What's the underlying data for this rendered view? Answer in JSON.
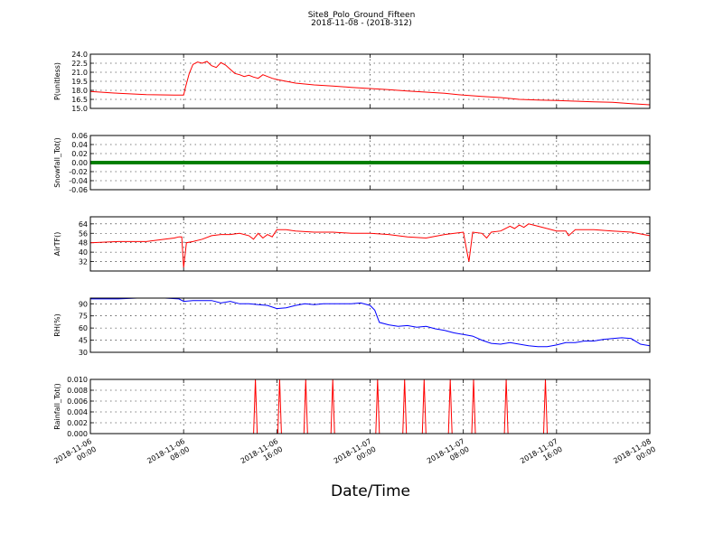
{
  "figure": {
    "title": "Site8_Polo_Ground_Fifteen",
    "subtitle": "2018-11-08 - (2018-312)",
    "xlabel": "Date/Time"
  },
  "chart_data": [
    {
      "type": "line",
      "ylabel": "P(unitless)",
      "yticks": [
        "24.0",
        "22.5",
        "21.0",
        "19.5",
        "18.0",
        "16.5",
        "15.0"
      ],
      "ylim": [
        15.0,
        24.0
      ],
      "color": "#ff0000",
      "grid": true,
      "x": [
        0,
        3,
        6,
        9,
        10,
        10.2,
        10.6,
        11,
        11.5,
        12,
        12.5,
        13,
        13.5,
        14,
        14.5,
        15,
        15.5,
        16,
        16.5,
        17,
        17.5,
        18,
        18.5,
        19,
        19.5,
        20,
        21,
        22,
        24,
        26,
        28,
        30,
        32,
        34,
        36,
        38,
        40,
        42,
        44,
        46,
        48,
        50,
        52,
        54,
        56,
        58,
        60
      ],
      "y": [
        17.8,
        17.5,
        17.3,
        17.2,
        17.2,
        18.5,
        20.8,
        22.3,
        22.7,
        22.5,
        22.8,
        22.1,
        21.8,
        22.6,
        22.2,
        21.5,
        20.8,
        20.6,
        20.3,
        20.5,
        20.2,
        20.0,
        20.6,
        20.3,
        20.0,
        19.8,
        19.5,
        19.2,
        18.9,
        18.7,
        18.5,
        18.3,
        18.1,
        17.9,
        17.7,
        17.5,
        17.2,
        17.0,
        16.8,
        16.5,
        16.4,
        16.3,
        16.2,
        16.1,
        16.0,
        15.8,
        15.6
      ]
    },
    {
      "type": "scatter",
      "ylabel": "Snowfall_Tot()",
      "yticks": [
        "0.06",
        "0.04",
        "0.02",
        "0.00",
        "-0.02",
        "-0.04",
        "-0.06"
      ],
      "ylim": [
        -0.06,
        0.06
      ],
      "color": "#007f00",
      "grid": true,
      "x": [
        0,
        60
      ],
      "y": [
        0,
        0
      ],
      "note_points": "constant"
    },
    {
      "type": "line",
      "ylabel": "AirTF()",
      "yticks": [
        "64",
        "56",
        "48",
        "40",
        "32"
      ],
      "ylim": [
        24,
        70
      ],
      "color": "#ff0000",
      "grid": true,
      "x": [
        0,
        3,
        4,
        6,
        8,
        9,
        9.5,
        9.8,
        10,
        10.3,
        11,
        12,
        13,
        14,
        15,
        16,
        17,
        17.5,
        18,
        18.5,
        19,
        19.5,
        20,
        21,
        22,
        24,
        26,
        28,
        30,
        32,
        34,
        36,
        38,
        40,
        40.4,
        40.6,
        41,
        42,
        42.5,
        43,
        44,
        45,
        45.5,
        46,
        46.5,
        47,
        48,
        50,
        51,
        51.3,
        52,
        54,
        56,
        58,
        60
      ],
      "y": [
        48,
        49,
        49,
        49,
        51,
        52,
        53,
        53,
        27,
        48,
        49,
        51,
        54,
        55,
        55,
        56,
        54,
        51,
        56,
        52,
        55,
        53,
        59,
        59,
        58,
        57,
        57,
        56,
        56,
        55,
        53,
        52,
        55,
        57,
        40,
        32,
        57,
        56,
        52,
        57,
        58,
        62,
        60,
        63,
        61,
        64,
        62,
        58,
        58,
        54,
        59,
        59,
        58,
        57,
        54
      ]
    },
    {
      "type": "line",
      "ylabel": "RH(%)",
      "yticks": [
        "90",
        "75",
        "60",
        "45",
        "30"
      ],
      "ylim": [
        30,
        97
      ],
      "color": "#0000ff",
      "grid": true,
      "x": [
        0,
        3,
        5,
        8,
        9.5,
        10,
        11,
        13,
        14,
        15,
        16,
        17,
        18,
        19,
        20,
        21,
        22,
        23,
        24,
        25,
        26,
        28,
        29,
        30,
        30.5,
        31,
        32,
        33,
        34,
        35,
        36,
        37,
        38,
        39,
        40,
        41,
        42,
        43,
        44,
        45,
        46,
        47,
        48,
        49,
        50,
        51,
        52,
        53,
        54,
        55,
        56,
        57,
        58,
        59,
        60
      ],
      "y": [
        96,
        96,
        97,
        97,
        96,
        93,
        94,
        94,
        91,
        93,
        90,
        90,
        89,
        88,
        84,
        85,
        88,
        90,
        89,
        90,
        90,
        90,
        91,
        88,
        82,
        67,
        64,
        62,
        63,
        61,
        62,
        59,
        57,
        54,
        52,
        50,
        45,
        41,
        40,
        42,
        40,
        38,
        37,
        37,
        39,
        42,
        42,
        44,
        44,
        46,
        47,
        48,
        47,
        40,
        38
      ]
    },
    {
      "type": "line",
      "ylabel": "Rainfall_Tot()",
      "yticks": [
        "0.010",
        "0.008",
        "0.006",
        "0.004",
        "0.002",
        "0.000"
      ],
      "ylim": [
        0,
        0.01
      ],
      "color": "#ff0000",
      "grid": true,
      "spikes_x": [
        17.7,
        20.3,
        23.1,
        26,
        30.8,
        33.7,
        35.8,
        38.6,
        41.1,
        44.6,
        48.8
      ],
      "spike_value": 0.01
    }
  ],
  "xaxis": {
    "xlim": [
      0,
      60
    ],
    "ticks": [
      {
        "x": 0,
        "line1": "2018-11-06",
        "line2": "00:00"
      },
      {
        "x": 10,
        "line1": "2018-11-06",
        "line2": "08:00"
      },
      {
        "x": 20,
        "line1": "2018-11-06",
        "line2": "16:00"
      },
      {
        "x": 30,
        "line1": "2018-11-07",
        "line2": "00:00"
      },
      {
        "x": 40,
        "line1": "2018-11-07",
        "line2": "08:00"
      },
      {
        "x": 50,
        "line1": "2018-11-07",
        "line2": "16:00"
      },
      {
        "x": 60,
        "line1": "2018-11-08",
        "line2": "00:00"
      }
    ]
  }
}
